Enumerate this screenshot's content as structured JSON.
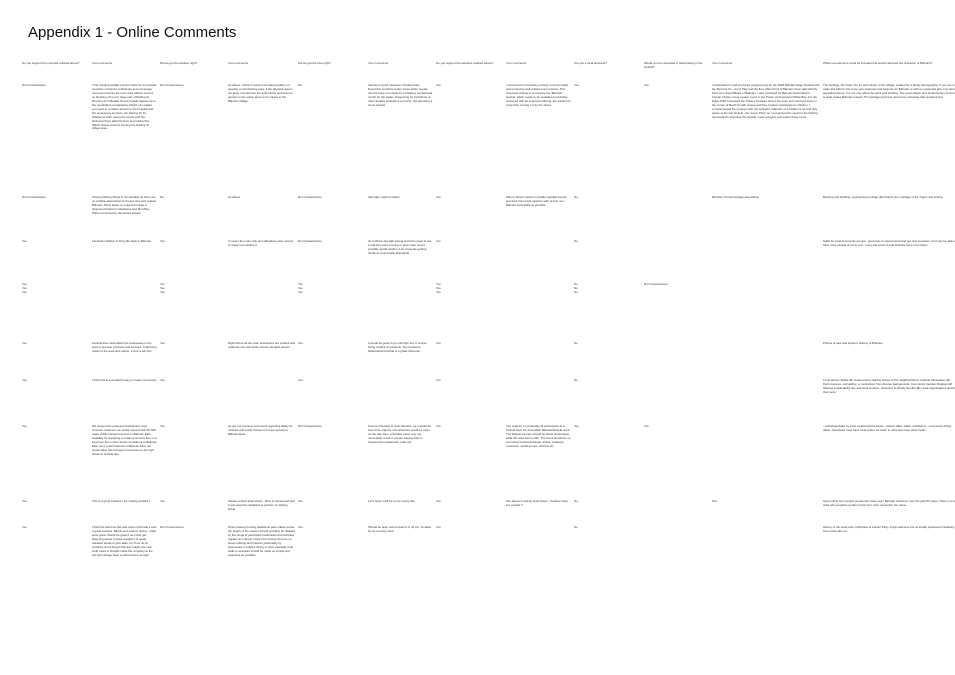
{
  "page": {
    "title": "Appendix 1 - Online Comments"
  },
  "headers": [
    "Do you support the proposal outlined above?",
    "Your comments",
    "Did we get the location right?",
    "Your comments",
    "Did we get the time right?",
    "Your comments",
    "Do you support the activities outlined below?",
    "Your comments",
    "Are you a local business?",
    "Would you be interested in participating in the festival?",
    "Your comments",
    "What new elements could be included that would celebrate the character of Balmain?"
  ],
  "rows": [
    [
      "Don't know/unsure",
      "I find creating smaller precinct hubs for the festival would be conducive to Balmain and encourage movement across the town area without a focus on blocking off a very large part of Darling St. Running from Beattie St and Unsafe Square up to the roundabout at Gladstone Park? I am aware you need to consider access to the hospital and the emergency services. On Darling St. At Gladstone Park (using the centre with the historical Town Hall) Precinct and Gallery/the Watch House precinct fronting the Darling St village area.",
      "Don't know/unsure",
      "As above. I think it needs to be about quality not quantity or this blowing area. If the physical area is too large it would lose the authenticity and become generic to the space and not be unique to the Balmain Village.",
      "No",
      "Sunday is good. However, October/early November would be better. Does either people use the busy un-released no finishing carnival and month for the peaks. Pregaming for Christmas or other Sunday festivals is a priority. Not attending a street festival",
      "Yes",
      "I recommend completely revising it commercially and producing well-crafted event content. This proposed change is to improve the 'Balmain' festival, which needs to be revitalised and better produced with an improved offering; the solution is more than moving it onto the street.",
      "Yes",
      "Yes",
      "I participated in and produced programming for the 2018 Balmain Edge Festival with the My Kind Co - Art of Play and the Ibex (West Find of Balmain Town Hall with My Kind Co's Sound Basis of Balmain. I also produced for Balmain Association's 'Hunter Library Living Legacy event in the Power Up Festival at White Bay. For the Edge 2018 I activated the Tinkers Treasure Ghost Toy store and surround area on the corner of Booth St with unique and free creative workshops for children. I complemented the program with the festival's collection of a children's art and play space at the last festival - the 'Loom Party' as I recognised the need for the Darling demographic attending the festival. I was a hugely successful 3 day event.",
      "The heritage, the heart, the art and culture of the village, curated for a family demographic. If you are to make this effort it has to be very local part and bespoke for Balmain or with an expanded arts only clear appealing theme. It is not only about the pubs and drinking. The good culture and family/family community is what makes Balmain unique! The heritage precincts need to be activated with programming."
    ],
    [
      "Don't know/unsure",
      "Closing Darling Street is not sensible as there are no suitable alternatives for buses and cars to East Balmain. Much better to re-jig and create a dispersed festival in Gladstone and Mort Bay Parks connected by decorated streets.",
      "No",
      "As above",
      "Don't know/unsure",
      "Saturday might be better",
      "Yes",
      "Plan to attract visitors to locally supplied events and food from local suppliers with as few non-Balmain food stalls as possible.",
      "No",
      "",
      "Member of local heritage association",
      "Brewing and distilling, engineering heritage (Mort Dock etc), heritage of the Tigers and surfing."
    ],
    [
      "Yes",
      "Fantastic initiative to bring life back to Balmain",
      "Yes",
      "It covers the main strip and still allows easy access to areas surrounding it",
      "Don't know/unsure",
      "As it will be day light saving would be great to see it spill into early evening or given later sound possible would result in a lot of people getting drinks at most locally afterwards.",
      "Yes",
      "",
      "No",
      "",
      "",
      "Stalls for local community groups - great way to spread word and get new members. And may be able to have a big parade of some sort - every kid loves! (Local festivals have a fun baby)"
    ],
    [
      "Yes\nYes\nYes",
      "",
      "Yes\nYes\nYes",
      "",
      "Yes\nYes\nYes",
      "",
      "Yes\nYes\nYes",
      "",
      "No\nNo\nNo",
      "Don't know/unsure",
      "",
      ""
    ],
    [
      "Yes",
      "Festival that could assist the businesses in the area to promote products and services. It will bring music to the area and culture. It'd be a win win.",
      "Yes",
      "Right where all the main businesses are located and residents can visit better homes via back streets",
      "Yes",
      "It would be good to go until 6pm but of course being mindful of residents. The Canberra Multicultural Festival is a great reference.",
      "Yes",
      "",
      "No",
      "",
      "",
      "Photos of past and present. History of Balmain"
    ],
    [
      "Yes",
      "I think this is a wonderful way to create community",
      "Yes",
      "",
      "Yes",
      "",
      "Yes",
      "",
      "No",
      "",
      "",
      "Local History Walks â€\" Guided tours sharing stories of the neighbourhood. Cultural Showcases â€\" Performances, storytelling, or workshops from diverse backgrounds. Community Garden Displays â€\" Sharing sustainability tips and local produce. Volunteer & Charity Booths â€\" Local organisations sharing their work."
    ],
    [
      "Yes",
      "We support the proposed festival and road closures. However, we would request that the MIC make public transport access to Balmain East available by supplying a small community bus on a loop from the London Hotel roundabout to Balmain East. As a small business in Balmain East, we would value this transport connection to the high street on festival day.",
      "Yes",
      "As per our previous comments regarding ability for vehicles and public transport to have access to Balmain East.",
      "Don't know/unsure",
      "Unsure if Sunday is most effective, as it would be best if the majority of businesses would be open on the day. Also, a Sunday event may not necessarily result in people staying later to frequent the restaurants, pubs etc.",
      "Yes",
      "The majority, or preferably all participants at a festival have the immediate Balmain/Rozelle area. The festival concept should be about showcasing what this area has to offer. The focus should be on promoting local businesses, artists, creatives, musicians, social groups, schools etc",
      "Yes",
      "Yes",
      "",
      "- workshops/talks by local creatives/businesses - historic talks, walks, exhibitions - community dining tables. Residents must have local coffee, sit down to relax and meet other locals."
    ],
    [
      "Yes",
      "This is a great initiative I am looking forward it",
      "Yes",
      "Please contact local shops - Mine is named and feel it and would be delighted to perform on darling street",
      "Yes",
      "Let's hope it will be a nice sunny day",
      "Yes",
      "See above in asking local shops - I believe there are at least 3",
      "No",
      "",
      "N/A",
      "Story telling from people people who have seen Balmain transform over the past 50 years. There is a local artist who would be perfect at this but I can't remember her name"
    ],
    [
      "Yes",
      "I think the last time this was done in Rozelle it was a great success. Bands and outdoor dining - stalls were great. Would be great if we could get flowering stores to have suppliers of newly released books to give talks. Arc Pour de la creativity at the Royal Oak and maybe the new Gold roses in Rozelle crafts the company at the old Spit cottage have a performance at night.",
      "Don't know/unsure",
      "Direct closure fronting Gladstone park makes sense the length of the closure should probably be dictated by the range of participant businesses and Activities register an interest I think it be strong out to be on buses offering and interest, particularly by businesses in publics dining or other specialty food stalls or activities should be made as simple and seamless as possible",
      "Yes",
      "Should be open until at least 6 or 10 pm. To allow for an evening meal.",
      "Yes",
      "",
      "No",
      "",
      "",
      "History of the local pubs, birthplace of Labour Party, Anglo welcome but on locally preserved Carlsberg Air from local pubs etc"
    ]
  ]
}
